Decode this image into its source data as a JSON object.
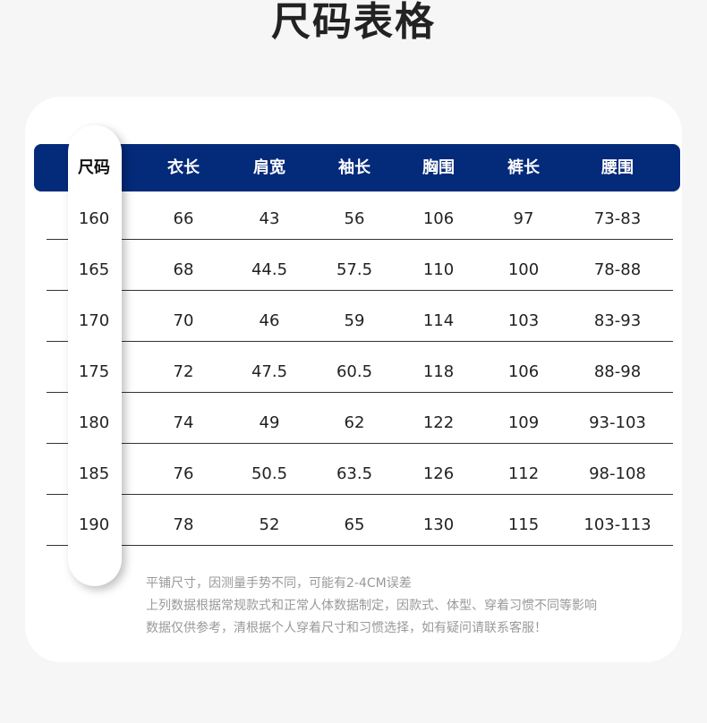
{
  "title": "尺码表格",
  "colors": {
    "header": "#042a7a",
    "background": "#f6f6f6"
  },
  "table": {
    "headers": [
      "尺码",
      "衣长",
      "肩宽",
      "袖长",
      "胸围",
      "裤长",
      "腰围"
    ],
    "rows": [
      [
        "160",
        "66",
        "43",
        "56",
        "106",
        "97",
        "73-83"
      ],
      [
        "165",
        "68",
        "44.5",
        "57.5",
        "110",
        "100",
        "78-88"
      ],
      [
        "170",
        "70",
        "46",
        "59",
        "114",
        "103",
        "83-93"
      ],
      [
        "175",
        "72",
        "47.5",
        "60.5",
        "118",
        "106",
        "88-98"
      ],
      [
        "180",
        "74",
        "49",
        "62",
        "122",
        "109",
        "93-103"
      ],
      [
        "185",
        "76",
        "50.5",
        "63.5",
        "126",
        "112",
        "98-108"
      ],
      [
        "190",
        "78",
        "52",
        "65",
        "130",
        "115",
        "103-113"
      ]
    ]
  },
  "notes": [
    "平铺尺寸，因测量手势不同，可能有2-4CM误差",
    "上列数据根据常规款式和正常人体数据制定，因款式、体型、穿着习惯不同等影响",
    "数据仅供参考，清根据个人穿着尺寸和习惯选择，如有疑问请联系客服！"
  ]
}
